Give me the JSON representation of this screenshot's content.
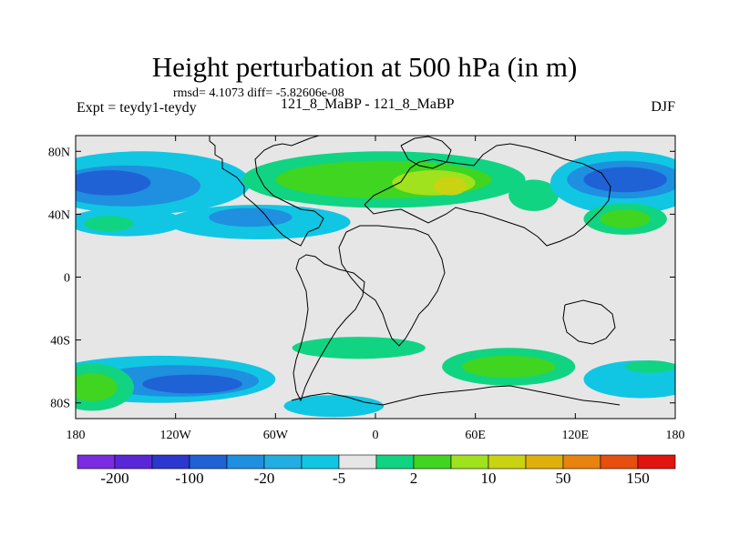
{
  "title": "Height perturbation at 500 hPa (in m)",
  "stats_line": "rmsd= 4.1073 diff= -5.82606e-08",
  "experiment": "Expt = teydy1-teydy",
  "runs": "121_8_MaBP - 121_8_MaBP",
  "season": "DJF",
  "axes": {
    "x_ticks": [
      {
        "lon": -180,
        "label": "180"
      },
      {
        "lon": -120,
        "label": "120W"
      },
      {
        "lon": -60,
        "label": "60W"
      },
      {
        "lon": 0,
        "label": "0"
      },
      {
        "lon": 60,
        "label": "60E"
      },
      {
        "lon": 120,
        "label": "120E"
      },
      {
        "lon": 180,
        "label": "180"
      }
    ],
    "y_ticks": [
      {
        "lat": 80,
        "label": "80N"
      },
      {
        "lat": 40,
        "label": "40N"
      },
      {
        "lat": 0,
        "label": "0"
      },
      {
        "lat": -40,
        "label": "40S"
      },
      {
        "lat": -80,
        "label": "80S"
      }
    ],
    "lon_range": [
      -180,
      180
    ],
    "lat_range": [
      -90,
      90
    ]
  },
  "colorbar": {
    "colors": [
      "#7b2be0",
      "#5a27d8",
      "#2c37cf",
      "#1f62d6",
      "#1f8fe0",
      "#22aee2",
      "#11c6e3",
      "#e6e6e6",
      "#10d482",
      "#3fd521",
      "#9fe21d",
      "#c9d312",
      "#dfb00c",
      "#e8830d",
      "#e74f0f",
      "#e1140f"
    ],
    "labels": [
      {
        "after_box": 1,
        "label": "-200"
      },
      {
        "after_box": 3,
        "label": "-100"
      },
      {
        "after_box": 5,
        "label": "-20"
      },
      {
        "after_box": 7,
        "label": "-5"
      },
      {
        "after_box": 9,
        "label": "2"
      },
      {
        "after_box": 11,
        "label": "10"
      },
      {
        "after_box": 13,
        "label": "50"
      },
      {
        "after_box": 15,
        "label": "150"
      }
    ]
  },
  "map_blobs": [
    {
      "level": "-5",
      "color": "#11c6e3",
      "lon": -140,
      "lat": 60,
      "rlon": 65,
      "rlat": 20
    },
    {
      "level": "-20",
      "color": "#1f8fe0",
      "lon": -150,
      "lat": 58,
      "rlon": 45,
      "rlat": 13
    },
    {
      "level": "-20",
      "color": "#1f62d6",
      "lon": -160,
      "lat": 60,
      "rlon": 25,
      "rlat": 8
    },
    {
      "level": "-5",
      "color": "#11c6e3",
      "lon": -150,
      "lat": 35,
      "rlon": 35,
      "rlat": 9
    },
    {
      "level": "2",
      "color": "#10d482",
      "lon": -160,
      "lat": 34,
      "rlon": 15,
      "rlat": 5
    },
    {
      "level": "-5",
      "color": "#11c6e3",
      "lon": -70,
      "lat": 35,
      "rlon": 55,
      "rlat": 11
    },
    {
      "level": "-20",
      "color": "#1f8fe0",
      "lon": -75,
      "lat": 38,
      "rlon": 25,
      "rlat": 6
    },
    {
      "level": "2",
      "color": "#10d482",
      "lon": 5,
      "lat": 62,
      "rlon": 85,
      "rlat": 18
    },
    {
      "level": "10",
      "color": "#3fd521",
      "lon": 5,
      "lat": 62,
      "rlon": 65,
      "rlat": 12
    },
    {
      "level": "10",
      "color": "#9fe21d",
      "lon": 35,
      "lat": 60,
      "rlon": 25,
      "rlat": 8
    },
    {
      "level": "50",
      "color": "#c9d312",
      "lon": 45,
      "lat": 58,
      "rlon": 10,
      "rlat": 6
    },
    {
      "level": "2",
      "color": "#10d482",
      "lon": 95,
      "lat": 52,
      "rlon": 15,
      "rlat": 10
    },
    {
      "level": "-5",
      "color": "#11c6e3",
      "lon": 150,
      "lat": 60,
      "rlon": 45,
      "rlat": 20
    },
    {
      "level": "-20",
      "color": "#1f8fe0",
      "lon": 150,
      "lat": 62,
      "rlon": 35,
      "rlat": 12
    },
    {
      "level": "-20",
      "color": "#1f62d6",
      "lon": 150,
      "lat": 62,
      "rlon": 25,
      "rlat": 8
    },
    {
      "level": "2",
      "color": "#10d482",
      "lon": 150,
      "lat": 37,
      "rlon": 25,
      "rlat": 10
    },
    {
      "level": "10",
      "color": "#3fd521",
      "lon": 150,
      "lat": 37,
      "rlon": 15,
      "rlat": 6
    },
    {
      "level": "-5",
      "color": "#11c6e3",
      "lon": -130,
      "lat": -65,
      "rlon": 70,
      "rlat": 15
    },
    {
      "level": "-20",
      "color": "#1f8fe0",
      "lon": -120,
      "lat": -66,
      "rlon": 50,
      "rlat": 10
    },
    {
      "level": "-20",
      "color": "#1f62d6",
      "lon": -110,
      "lat": -68,
      "rlon": 30,
      "rlat": 6
    },
    {
      "level": "2",
      "color": "#10d482",
      "lon": -170,
      "lat": -70,
      "rlon": 25,
      "rlat": 15
    },
    {
      "level": "10",
      "color": "#3fd521",
      "lon": -170,
      "lat": -70,
      "rlon": 15,
      "rlat": 9
    },
    {
      "level": "2",
      "color": "#10d482",
      "lon": -10,
      "lat": -45,
      "rlon": 40,
      "rlat": 7
    },
    {
      "level": "-5",
      "color": "#11c6e3",
      "lon": -25,
      "lat": -82,
      "rlon": 30,
      "rlat": 7
    },
    {
      "level": "2",
      "color": "#10d482",
      "lon": 80,
      "lat": -57,
      "rlon": 40,
      "rlat": 12
    },
    {
      "level": "10",
      "color": "#3fd521",
      "lon": 80,
      "lat": -57,
      "rlon": 28,
      "rlat": 7
    },
    {
      "level": "-5",
      "color": "#11c6e3",
      "lon": 160,
      "lat": -65,
      "rlon": 35,
      "rlat": 12
    },
    {
      "level": "2",
      "color": "#10d482",
      "lon": 165,
      "lat": -57,
      "rlon": 15,
      "rlat": 4
    }
  ]
}
